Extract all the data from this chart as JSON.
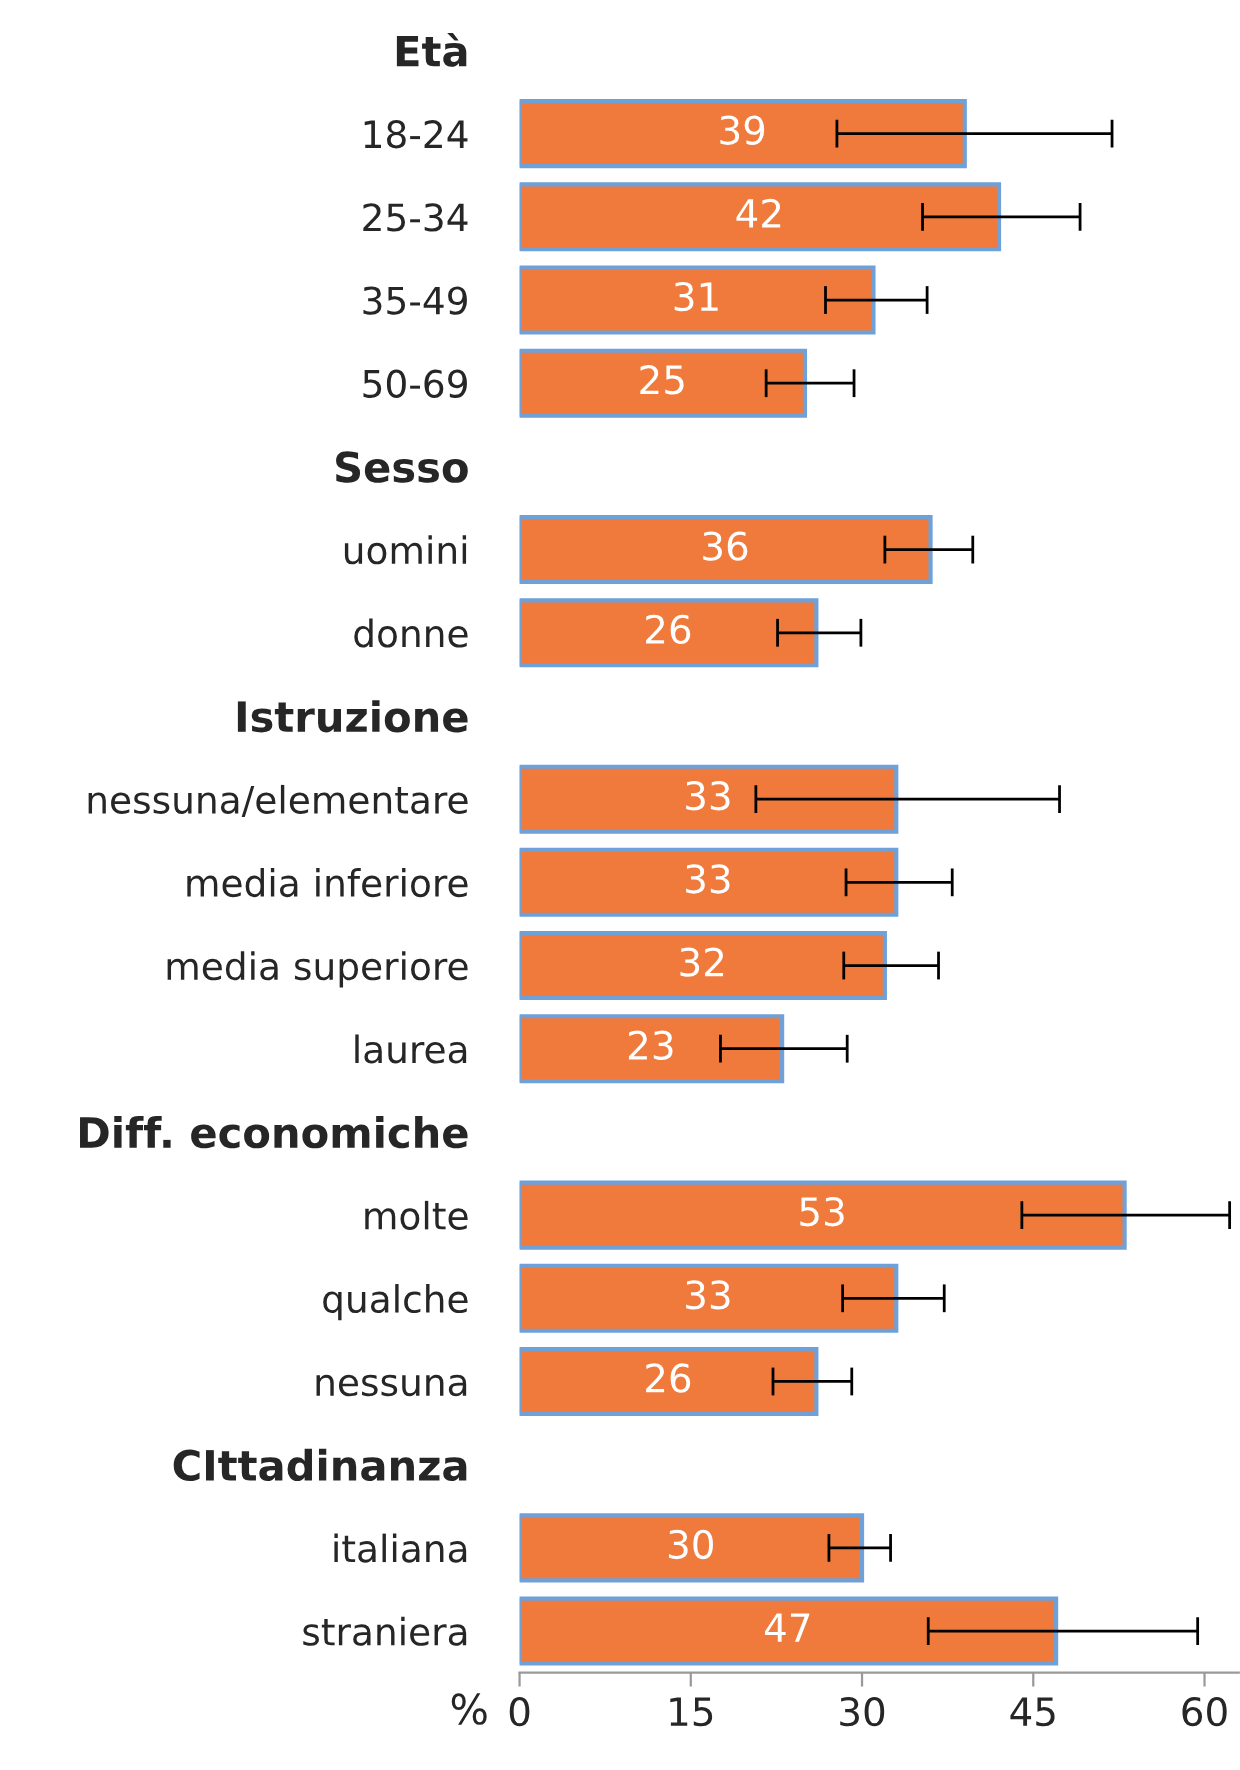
{
  "chart_data": {
    "type": "bar",
    "orientation": "horizontal",
    "xlabel": "%",
    "categories": [
      "Età",
      "18-24",
      "25-34",
      "35-49",
      "50-69",
      "Sesso",
      "uomini",
      "donne",
      "Istruzione",
      "nessuna/elementare",
      "media inferiore",
      "media superiore",
      "laurea",
      "Diff. economiche",
      "molte",
      "qualche",
      "nessuna",
      "CIttadinanza",
      "italiana",
      "straniera"
    ],
    "values": [
      null,
      39,
      42,
      31,
      25,
      null,
      36,
      26,
      null,
      33,
      33,
      32,
      23,
      null,
      53,
      33,
      26,
      null,
      30,
      47
    ],
    "errors": [
      null,
      [
        27.8,
        51.9
      ],
      [
        35.3,
        49.1
      ],
      [
        26.8,
        35.7
      ],
      [
        21.6,
        29.3
      ],
      null,
      [
        32.0,
        39.7
      ],
      [
        22.6,
        29.9
      ],
      null,
      [
        20.7,
        47.3
      ],
      [
        28.6,
        37.9
      ],
      [
        28.4,
        36.7
      ],
      [
        17.6,
        28.7
      ],
      null,
      [
        44.0,
        62.2
      ],
      [
        28.3,
        37.2
      ],
      [
        22.2,
        29.1
      ],
      null,
      [
        27.1,
        32.5
      ],
      [
        35.8,
        59.4
      ]
    ],
    "color": "#f07a3c",
    "data_labels": true,
    "xlim": [
      0,
      63
    ],
    "xticks": [
      0,
      15,
      30,
      45,
      60
    ],
    "grid": false,
    "legend": false
  }
}
